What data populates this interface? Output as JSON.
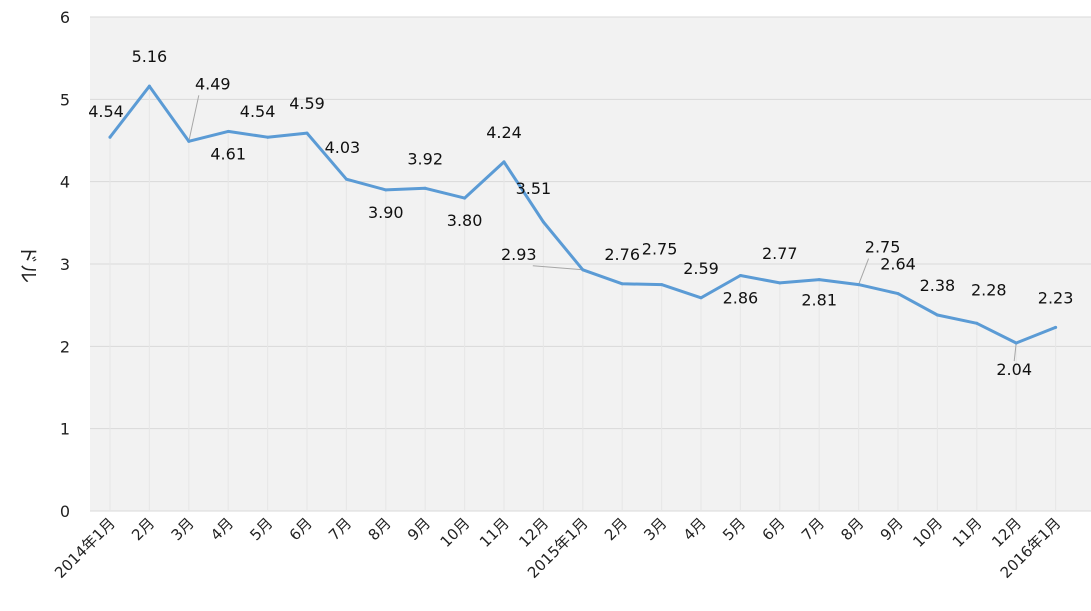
{
  "chart_data": {
    "type": "line",
    "categories": [
      "2014年1月",
      "2月",
      "3月",
      "4月",
      "5月",
      "6月",
      "7月",
      "8月",
      "9月",
      "10月",
      "11月",
      "12月",
      "2015年1月",
      "2月",
      "3月",
      "4月",
      "5月",
      "6月",
      "7月",
      "8月",
      "9月",
      "10月",
      "11月",
      "12月",
      "2016年1月"
    ],
    "series": [
      {
        "values": [
          4.54,
          5.16,
          4.49,
          4.61,
          4.54,
          4.59,
          4.03,
          3.9,
          3.92,
          3.8,
          4.24,
          3.51,
          2.93,
          2.76,
          2.75,
          2.59,
          2.86,
          2.77,
          2.81,
          2.75,
          2.64,
          2.38,
          2.28,
          2.04,
          2.23
        ]
      }
    ],
    "data_labels": [
      "4.54",
      "5.16",
      "4.49",
      "4.61",
      "4.54",
      "4.59",
      "4.03",
      "3.90",
      "3.92",
      "3.80",
      "4.24",
      "3.51",
      "2.93",
      "2.76",
      "2.75",
      "2.59",
      "2.86",
      "2.77",
      "2.81",
      "2.75",
      "2.64",
      "2.38",
      "2.28",
      "2.04",
      "2.23"
    ],
    "yticks": [
      "0",
      "1",
      "2",
      "3",
      "4",
      "5",
      "6"
    ],
    "ylabel": "ドル",
    "ylim": [
      0,
      6
    ],
    "grid": true,
    "line_color": "#5b9bd5",
    "plot_background": "#f2f2f2"
  }
}
